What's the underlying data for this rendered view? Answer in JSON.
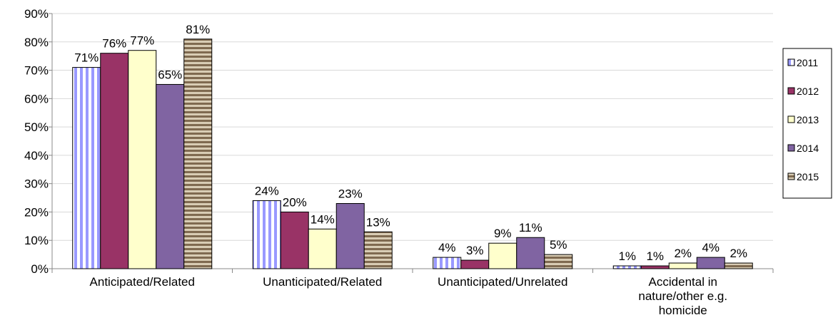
{
  "chart_data": {
    "type": "bar",
    "categories": [
      "Anticipated/Related",
      "Unanticipated/Related",
      "Unanticipated/Unrelated",
      "Accidental in nature/other e.g. homicide"
    ],
    "series": [
      {
        "name": "2011",
        "color": "#9999ff",
        "pattern": "vertical-stripes",
        "values": [
          71,
          24,
          4,
          1
        ],
        "value_labels": [
          "71%",
          "24%",
          "4%",
          "1%"
        ]
      },
      {
        "name": "2012",
        "color": "#993366",
        "values": [
          76,
          20,
          3,
          1
        ],
        "value_labels": [
          "76%",
          "20%",
          "3%",
          "1%"
        ]
      },
      {
        "name": "2013",
        "color": "#ffffcc",
        "values": [
          77,
          14,
          9,
          2
        ],
        "value_labels": [
          "77%",
          "14%",
          "9%",
          "2%"
        ]
      },
      {
        "name": "2014",
        "color": "#8064a2",
        "values": [
          65,
          23,
          11,
          4
        ],
        "value_labels": [
          "65%",
          "23%",
          "11%",
          "4%"
        ]
      },
      {
        "name": "2015",
        "color": "#7f6a50",
        "pattern": "horizontal-stripes",
        "values": [
          81,
          13,
          5,
          2
        ],
        "value_labels": [
          "81%",
          "13%",
          "5%",
          "2%"
        ]
      }
    ],
    "ylim": [
      0,
      90
    ],
    "yticks": [
      {
        "value": 0,
        "label": "0%"
      },
      {
        "value": 10,
        "label": "10%"
      },
      {
        "value": 20,
        "label": "20%"
      },
      {
        "value": 30,
        "label": "30%"
      },
      {
        "value": 40,
        "label": "40%"
      },
      {
        "value": 50,
        "label": "50%"
      },
      {
        "value": 60,
        "label": "60%"
      },
      {
        "value": 70,
        "label": "70%"
      },
      {
        "value": 80,
        "label": "80%"
      },
      {
        "value": 90,
        "label": "90%"
      }
    ],
    "grid": true,
    "legend": "right"
  }
}
